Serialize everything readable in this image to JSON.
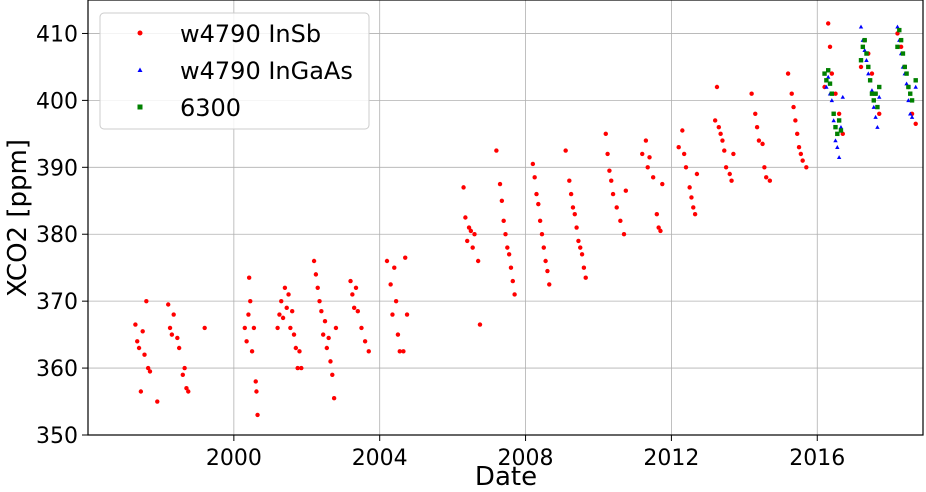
{
  "chart_data": {
    "type": "scatter",
    "title": "",
    "xlabel": "Date",
    "ylabel": "XCO2 [ppm]",
    "xlim": [
      1996.0,
      2018.9
    ],
    "ylim": [
      350,
      415
    ],
    "x_ticks": [
      2000,
      2004,
      2008,
      2012,
      2016
    ],
    "x_tick_labels": [
      "2000",
      "2004",
      "2008",
      "2012",
      "2016"
    ],
    "y_ticks": [
      350,
      360,
      370,
      380,
      390,
      400,
      410
    ],
    "y_tick_labels": [
      "350",
      "360",
      "370",
      "380",
      "390",
      "400",
      "410"
    ],
    "grid": true,
    "legend_position": "top-left",
    "series": [
      {
        "name": "w4790 InSb",
        "color": "#ff0000",
        "marker": "circle",
        "points": [
          [
            1997.3,
            366.5
          ],
          [
            1997.35,
            364.0
          ],
          [
            1997.4,
            363.0
          ],
          [
            1997.45,
            356.5
          ],
          [
            1997.5,
            365.5
          ],
          [
            1997.55,
            362.0
          ],
          [
            1997.6,
            370.0
          ],
          [
            1997.65,
            360.0
          ],
          [
            1997.7,
            359.5
          ],
          [
            1997.9,
            355.0
          ],
          [
            1998.2,
            369.5
          ],
          [
            1998.25,
            366.0
          ],
          [
            1998.3,
            365.0
          ],
          [
            1998.35,
            368.0
          ],
          [
            1998.45,
            364.5
          ],
          [
            1998.5,
            363.0
          ],
          [
            1998.6,
            359.0
          ],
          [
            1998.65,
            360.0
          ],
          [
            1998.7,
            357.0
          ],
          [
            1998.75,
            356.5
          ],
          [
            1999.2,
            366.0
          ],
          [
            2000.3,
            366.0
          ],
          [
            2000.35,
            364.0
          ],
          [
            2000.4,
            368.0
          ],
          [
            2000.42,
            373.5
          ],
          [
            2000.45,
            370.0
          ],
          [
            2000.5,
            362.5
          ],
          [
            2000.55,
            366.0
          ],
          [
            2000.6,
            358.0
          ],
          [
            2000.62,
            356.5
          ],
          [
            2000.65,
            353.0
          ],
          [
            2001.2,
            366.0
          ],
          [
            2001.25,
            368.0
          ],
          [
            2001.3,
            370.0
          ],
          [
            2001.35,
            367.5
          ],
          [
            2001.4,
            372.0
          ],
          [
            2001.45,
            369.0
          ],
          [
            2001.5,
            371.0
          ],
          [
            2001.55,
            366.0
          ],
          [
            2001.6,
            368.5
          ],
          [
            2001.65,
            365.0
          ],
          [
            2001.7,
            363.0
          ],
          [
            2001.75,
            360.0
          ],
          [
            2001.8,
            362.5
          ],
          [
            2001.85,
            360.0
          ],
          [
            2002.2,
            376.0
          ],
          [
            2002.25,
            374.0
          ],
          [
            2002.3,
            372.0
          ],
          [
            2002.35,
            370.0
          ],
          [
            2002.4,
            368.5
          ],
          [
            2002.45,
            365.0
          ],
          [
            2002.5,
            367.0
          ],
          [
            2002.55,
            363.0
          ],
          [
            2002.6,
            364.5
          ],
          [
            2002.65,
            361.0
          ],
          [
            2002.7,
            359.0
          ],
          [
            2002.75,
            355.5
          ],
          [
            2002.8,
            366.0
          ],
          [
            2003.2,
            373.0
          ],
          [
            2003.25,
            371.0
          ],
          [
            2003.3,
            369.0
          ],
          [
            2003.35,
            372.0
          ],
          [
            2003.4,
            368.5
          ],
          [
            2003.5,
            366.0
          ],
          [
            2003.6,
            364.0
          ],
          [
            2003.7,
            362.5
          ],
          [
            2004.2,
            376.0
          ],
          [
            2004.3,
            372.5
          ],
          [
            2004.35,
            368.0
          ],
          [
            2004.4,
            375.0
          ],
          [
            2004.45,
            370.0
          ],
          [
            2004.5,
            365.0
          ],
          [
            2004.55,
            362.5
          ],
          [
            2004.65,
            362.5
          ],
          [
            2004.7,
            376.5
          ],
          [
            2004.75,
            368.0
          ],
          [
            2006.3,
            387.0
          ],
          [
            2006.35,
            382.5
          ],
          [
            2006.4,
            379.0
          ],
          [
            2006.45,
            381.0
          ],
          [
            2006.5,
            380.5
          ],
          [
            2006.55,
            378.0
          ],
          [
            2006.6,
            380.0
          ],
          [
            2006.7,
            376.0
          ],
          [
            2006.75,
            366.5
          ],
          [
            2007.2,
            392.5
          ],
          [
            2007.3,
            387.5
          ],
          [
            2007.35,
            385.0
          ],
          [
            2007.4,
            382.0
          ],
          [
            2007.45,
            380.0
          ],
          [
            2007.5,
            378.0
          ],
          [
            2007.55,
            377.0
          ],
          [
            2007.6,
            375.0
          ],
          [
            2007.65,
            373.0
          ],
          [
            2007.7,
            371.0
          ],
          [
            2008.2,
            390.5
          ],
          [
            2008.25,
            388.5
          ],
          [
            2008.3,
            386.0
          ],
          [
            2008.35,
            384.5
          ],
          [
            2008.4,
            382.0
          ],
          [
            2008.45,
            380.0
          ],
          [
            2008.5,
            378.0
          ],
          [
            2008.55,
            376.0
          ],
          [
            2008.6,
            374.5
          ],
          [
            2008.65,
            372.5
          ],
          [
            2009.1,
            392.5
          ],
          [
            2009.2,
            388.0
          ],
          [
            2009.25,
            386.0
          ],
          [
            2009.3,
            384.0
          ],
          [
            2009.35,
            383.0
          ],
          [
            2009.4,
            381.0
          ],
          [
            2009.45,
            379.0
          ],
          [
            2009.5,
            378.0
          ],
          [
            2009.55,
            377.0
          ],
          [
            2009.6,
            375.0
          ],
          [
            2009.65,
            373.5
          ],
          [
            2010.2,
            395.0
          ],
          [
            2010.25,
            392.0
          ],
          [
            2010.3,
            389.5
          ],
          [
            2010.35,
            388.0
          ],
          [
            2010.4,
            386.0
          ],
          [
            2010.5,
            384.0
          ],
          [
            2010.6,
            382.0
          ],
          [
            2010.7,
            380.0
          ],
          [
            2010.75,
            386.5
          ],
          [
            2011.2,
            392.0
          ],
          [
            2011.3,
            394.0
          ],
          [
            2011.35,
            390.0
          ],
          [
            2011.4,
            391.5
          ],
          [
            2011.5,
            388.5
          ],
          [
            2011.6,
            383.0
          ],
          [
            2011.65,
            381.0
          ],
          [
            2011.7,
            380.5
          ],
          [
            2011.75,
            387.5
          ],
          [
            2012.2,
            393.0
          ],
          [
            2012.3,
            395.5
          ],
          [
            2012.35,
            392.0
          ],
          [
            2012.4,
            390.0
          ],
          [
            2012.5,
            387.0
          ],
          [
            2012.55,
            385.5
          ],
          [
            2012.6,
            384.0
          ],
          [
            2012.65,
            383.0
          ],
          [
            2012.7,
            389.0
          ],
          [
            2013.2,
            397.0
          ],
          [
            2013.25,
            402.0
          ],
          [
            2013.3,
            396.0
          ],
          [
            2013.35,
            395.0
          ],
          [
            2013.4,
            394.0
          ],
          [
            2013.45,
            392.5
          ],
          [
            2013.5,
            390.0
          ],
          [
            2013.6,
            389.0
          ],
          [
            2013.65,
            388.0
          ],
          [
            2013.7,
            392.0
          ],
          [
            2014.2,
            401.0
          ],
          [
            2014.3,
            398.0
          ],
          [
            2014.35,
            396.0
          ],
          [
            2014.4,
            394.0
          ],
          [
            2014.5,
            393.5
          ],
          [
            2014.55,
            390.0
          ],
          [
            2014.6,
            388.5
          ],
          [
            2014.7,
            388.0
          ],
          [
            2015.2,
            404.0
          ],
          [
            2015.3,
            401.0
          ],
          [
            2015.35,
            399.0
          ],
          [
            2015.4,
            397.0
          ],
          [
            2015.45,
            395.0
          ],
          [
            2015.5,
            393.0
          ],
          [
            2015.55,
            392.0
          ],
          [
            2015.6,
            391.0
          ],
          [
            2015.7,
            390.0
          ],
          [
            2016.2,
            402.0
          ],
          [
            2016.3,
            411.5
          ],
          [
            2016.35,
            408.0
          ],
          [
            2016.4,
            404.0
          ],
          [
            2016.5,
            401.0
          ],
          [
            2016.6,
            398.0
          ],
          [
            2016.7,
            395.0
          ],
          [
            2017.2,
            405.0
          ],
          [
            2017.3,
            409.0
          ],
          [
            2017.4,
            407.0
          ],
          [
            2017.5,
            404.0
          ],
          [
            2017.6,
            401.0
          ],
          [
            2017.7,
            398.0
          ],
          [
            2018.2,
            410.0
          ],
          [
            2018.3,
            408.0
          ],
          [
            2018.4,
            405.0
          ],
          [
            2018.5,
            402.0
          ],
          [
            2018.6,
            398.0
          ],
          [
            2018.7,
            396.5
          ]
        ]
      },
      {
        "name": "w4790 InGaAs",
        "color": "#0000ff",
        "marker": "triangle",
        "points": [
          [
            2016.2,
            404.0
          ],
          [
            2016.25,
            402.0
          ],
          [
            2016.3,
            403.5
          ],
          [
            2016.35,
            401.0
          ],
          [
            2016.4,
            400.0
          ],
          [
            2016.45,
            397.0
          ],
          [
            2016.5,
            394.0
          ],
          [
            2016.55,
            393.0
          ],
          [
            2016.6,
            391.5
          ],
          [
            2016.65,
            396.0
          ],
          [
            2016.7,
            400.5
          ],
          [
            2017.2,
            411.0
          ],
          [
            2017.25,
            409.0
          ],
          [
            2017.3,
            407.5
          ],
          [
            2017.35,
            406.0
          ],
          [
            2017.4,
            404.0
          ],
          [
            2017.45,
            403.0
          ],
          [
            2017.5,
            401.5
          ],
          [
            2017.55,
            399.0
          ],
          [
            2017.6,
            397.5
          ],
          [
            2017.65,
            396.0
          ],
          [
            2017.7,
            400.5
          ],
          [
            2018.2,
            411.0
          ],
          [
            2018.25,
            409.0
          ],
          [
            2018.3,
            407.0
          ],
          [
            2018.35,
            405.0
          ],
          [
            2018.4,
            404.0
          ],
          [
            2018.45,
            402.5
          ],
          [
            2018.5,
            400.0
          ],
          [
            2018.55,
            398.0
          ],
          [
            2018.6,
            397.5
          ],
          [
            2018.7,
            402.0
          ]
        ]
      },
      {
        "name": "6300",
        "color": "#008000",
        "marker": "square",
        "points": [
          [
            2016.2,
            404.0
          ],
          [
            2016.25,
            403.0
          ],
          [
            2016.3,
            404.5
          ],
          [
            2016.35,
            402.5
          ],
          [
            2016.4,
            401.0
          ],
          [
            2016.45,
            398.0
          ],
          [
            2016.5,
            396.0
          ],
          [
            2016.55,
            395.0
          ],
          [
            2016.6,
            397.0
          ],
          [
            2016.65,
            395.5
          ],
          [
            2017.2,
            406.0
          ],
          [
            2017.25,
            408.0
          ],
          [
            2017.3,
            409.0
          ],
          [
            2017.35,
            407.0
          ],
          [
            2017.4,
            405.0
          ],
          [
            2017.45,
            403.0
          ],
          [
            2017.5,
            401.0
          ],
          [
            2017.55,
            400.0
          ],
          [
            2017.6,
            401.0
          ],
          [
            2017.65,
            399.0
          ],
          [
            2017.7,
            402.0
          ],
          [
            2018.2,
            408.0
          ],
          [
            2018.25,
            410.5
          ],
          [
            2018.3,
            409.0
          ],
          [
            2018.35,
            407.0
          ],
          [
            2018.4,
            405.0
          ],
          [
            2018.45,
            404.0
          ],
          [
            2018.5,
            402.0
          ],
          [
            2018.55,
            401.0
          ],
          [
            2018.6,
            400.0
          ],
          [
            2018.7,
            403.0
          ]
        ]
      }
    ]
  }
}
